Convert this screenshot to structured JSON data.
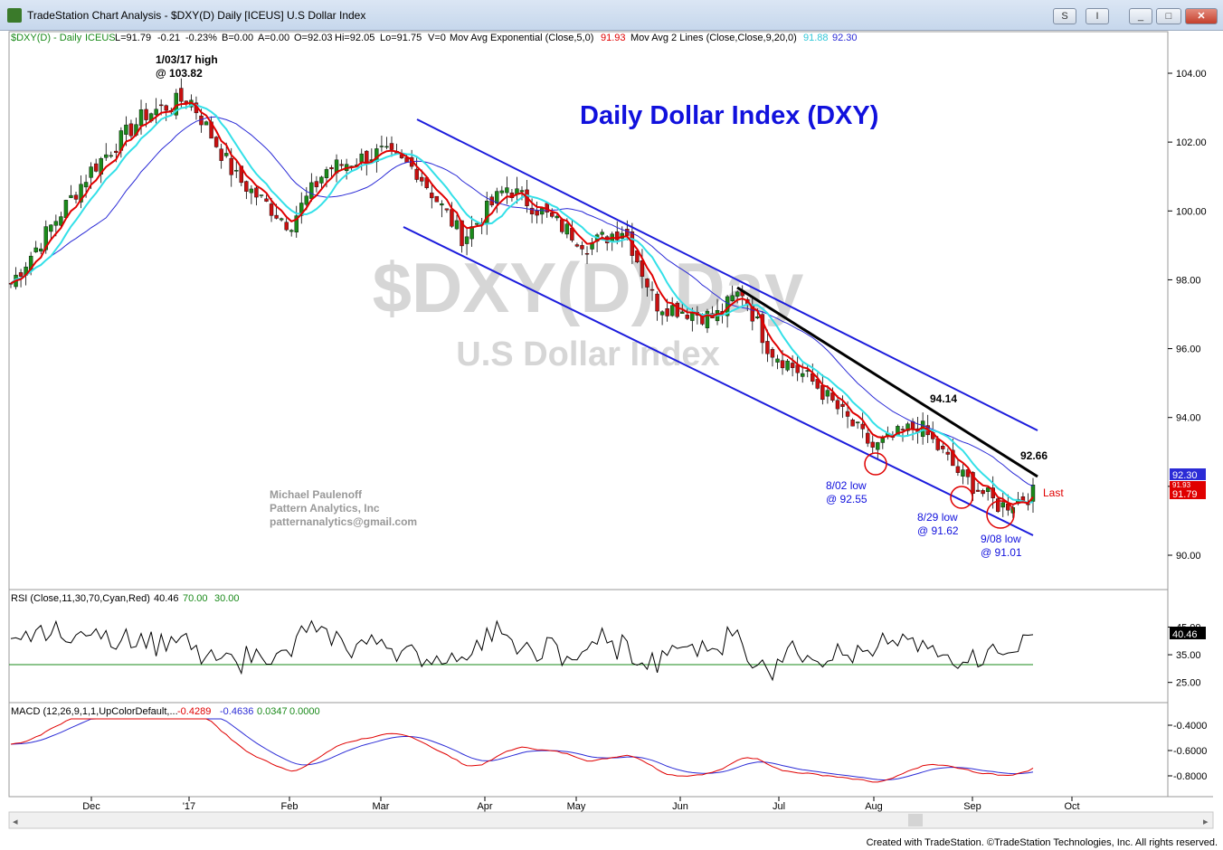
{
  "window": {
    "title": "TradeStation Chart Analysis - $DXY(D) Daily [ICEUS] U.S Dollar Index",
    "buttons": [
      "S",
      "I",
      "_",
      "□",
      "✕"
    ]
  },
  "info_line": {
    "symbol": "$DXY(D) - Daily",
    "exchange": "ICEUS",
    "last": "L=91.79",
    "change": "-0.21",
    "change_pct": "-0.23%",
    "bid": "B=0.00",
    "ask": "A=0.00",
    "open": "O=92.03",
    "high": "Hi=92.05",
    "low": "Lo=91.75",
    "volume": "V=0",
    "ema_label": "Mov Avg Exponential (Close,5,0)",
    "ema_value": "91.93",
    "ma2_label": "Mov Avg 2 Lines (Close,Close,9,20,0)",
    "ma2_value1": "91.88",
    "ma2_value2": "92.30"
  },
  "annotations": {
    "main_title": "Daily Dollar Index (DXY)",
    "watermark_symbol": "$DXY(D) Day",
    "watermark_name": "U.S Dollar Index",
    "high_label_1": "1/03/17 high",
    "high_label_2": "@ 103.82",
    "label_9414": "94.14",
    "label_9266": "92.66",
    "low_802_1": "8/02 low",
    "low_802_2": "@ 92.55",
    "low_829_1": "8/29 low",
    "low_829_2": "@ 91.62",
    "low_908_1": "9/08 low",
    "low_908_2": "@ 91.01",
    "last_label": "Last",
    "credit_1": "Michael Paulenoff",
    "credit_2": "Pattern Analytics, Inc",
    "credit_3": "patternanalytics@gmail.com"
  },
  "price_axis": {
    "ticks": [
      "104.00",
      "102.00",
      "100.00",
      "98.00",
      "96.00",
      "94.00",
      "92.00",
      "90.00"
    ],
    "tag_top": "92.30",
    "tag_mid": "91.93",
    "tag_last": "91.79"
  },
  "rsi": {
    "label": "RSI (Close,11,30,70,Cyan,Red)",
    "value": "40.46",
    "overbought": "70.00",
    "oversold": "30.00",
    "ticks": [
      "45.00",
      "35.00",
      "25.00"
    ],
    "tag": "40.46"
  },
  "macd": {
    "label": "MACD (12,26,9,1,1,UpColorDefault,...",
    "macd": "-0.4289",
    "signal": "-0.4636",
    "hist": "0.0347",
    "zero": "0.0000",
    "ticks": [
      "-0.4000",
      "-0.6000",
      "-0.8000"
    ]
  },
  "x_axis": {
    "labels": [
      "Dec",
      "'17",
      "Feb",
      "Mar",
      "Apr",
      "May",
      "Jun",
      "Jul",
      "Aug",
      "Sep",
      "Oct"
    ]
  },
  "footer": "Created with TradeStation. ©TradeStation Technologies, Inc. All rights reserved.",
  "colors": {
    "ema5": "#e00000",
    "ma9": "#33e0e8",
    "ma20": "#2b2bd6",
    "channel": "#1c1cdc",
    "trendline": "#000000",
    "up_candle": "#1a8a1a",
    "down_candle": "#c81010",
    "title_blue": "#1111dd"
  },
  "chart_data": [
    {
      "type": "line",
      "title": "Daily Dollar Index (DXY)",
      "xlabel": "",
      "ylabel": "",
      "x": [
        "Nov-24",
        "Dec-01",
        "Dec-15",
        "Jan-03",
        "Jan-15",
        "Feb-01",
        "Feb-10",
        "Mar-01",
        "Mar-10",
        "Mar-27",
        "Apr-10",
        "Apr-25",
        "May-10",
        "May-25",
        "Jun-10",
        "Jun-20",
        "Jul-01",
        "Jul-15",
        "Aug-02",
        "Aug-15",
        "Aug-29",
        "Sep-08",
        "Sep-18"
      ],
      "series": [
        {
          "name": "Close",
          "values": [
            97.9,
            101.2,
            102.8,
            103.3,
            101.0,
            99.6,
            101.2,
            101.7,
            101.2,
            99.2,
            100.7,
            99.0,
            99.5,
            97.3,
            96.9,
            97.7,
            96.0,
            95.0,
            93.1,
            93.8,
            92.3,
            91.4,
            91.79
          ]
        }
      ],
      "ylim": [
        89.2,
        105.2
      ],
      "xlim": [
        "Nov-24",
        "Oct-03"
      ]
    },
    {
      "type": "line",
      "title": "RSI (Close,11,30,70,Cyan,Red)",
      "ylim": [
        20,
        52
      ]
    },
    {
      "type": "line",
      "title": "MACD (12,26,9,1,1,UpColorDefault,...",
      "ylim": [
        -0.9,
        -0.35
      ]
    }
  ]
}
